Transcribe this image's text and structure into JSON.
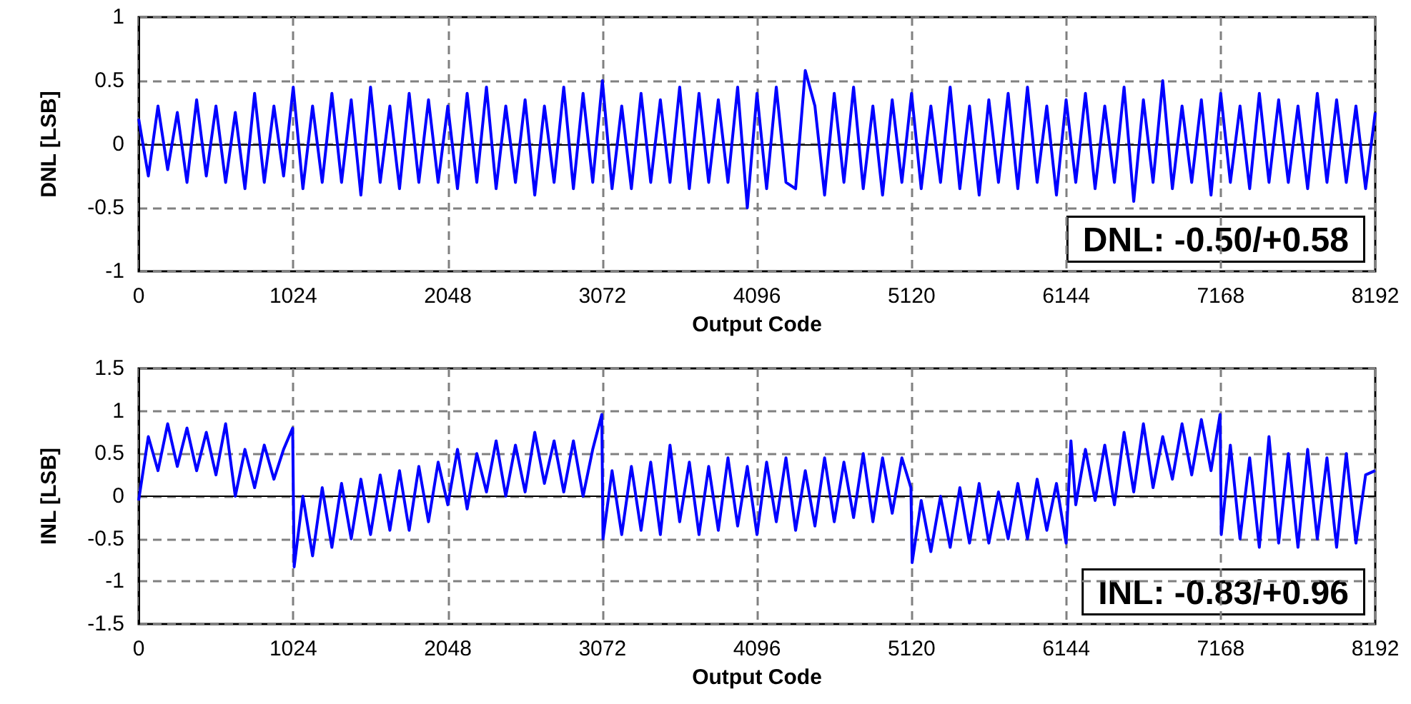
{
  "chart_data": [
    {
      "type": "line",
      "xlabel": "Output Code",
      "ylabel": "DNL [LSB]",
      "xlim": [
        0,
        8192
      ],
      "xticks": [
        0,
        1024,
        2048,
        3072,
        4096,
        5120,
        6144,
        7168,
        8192
      ],
      "ylim": [
        -1,
        1
      ],
      "yticks": [
        -1,
        -0.5,
        0,
        0.5,
        1
      ],
      "grid": true,
      "marker": "none",
      "line_style": "solid",
      "annotations": [
        "DNL: -0.50/+0.58"
      ],
      "series": [
        {
          "color": "#0000ff",
          "x": [
            0,
            64,
            128,
            192,
            256,
            320,
            384,
            448,
            512,
            576,
            640,
            704,
            768,
            832,
            896,
            960,
            1024,
            1088,
            1152,
            1216,
            1280,
            1344,
            1408,
            1472,
            1536,
            1600,
            1664,
            1728,
            1792,
            1856,
            1920,
            1984,
            2048,
            2112,
            2176,
            2240,
            2304,
            2368,
            2432,
            2496,
            2560,
            2624,
            2688,
            2752,
            2816,
            2880,
            2944,
            3008,
            3072,
            3136,
            3200,
            3264,
            3328,
            3392,
            3456,
            3520,
            3584,
            3648,
            3712,
            3776,
            3840,
            3904,
            3968,
            4032,
            4096,
            4160,
            4224,
            4288,
            4352,
            4416,
            4480,
            4544,
            4608,
            4672,
            4736,
            4800,
            4864,
            4928,
            4992,
            5056,
            5120,
            5184,
            5248,
            5312,
            5376,
            5440,
            5504,
            5568,
            5632,
            5696,
            5760,
            5824,
            5888,
            5952,
            6016,
            6080,
            6144,
            6208,
            6272,
            6336,
            6400,
            6464,
            6528,
            6592,
            6656,
            6720,
            6784,
            6848,
            6912,
            6976,
            7040,
            7104,
            7168,
            7232,
            7296,
            7360,
            7424,
            7488,
            7552,
            7616,
            7680,
            7744,
            7808,
            7872,
            7936,
            8000,
            8064,
            8128,
            8192
          ],
          "values": [
            0.2,
            -0.25,
            0.3,
            -0.2,
            0.25,
            -0.3,
            0.35,
            -0.25,
            0.3,
            -0.3,
            0.25,
            -0.35,
            0.4,
            -0.3,
            0.3,
            -0.25,
            0.45,
            -0.35,
            0.3,
            -0.3,
            0.4,
            -0.3,
            0.35,
            -0.4,
            0.45,
            -0.3,
            0.3,
            -0.35,
            0.4,
            -0.3,
            0.35,
            -0.3,
            0.3,
            -0.35,
            0.4,
            -0.3,
            0.45,
            -0.35,
            0.3,
            -0.3,
            0.35,
            -0.4,
            0.3,
            -0.3,
            0.45,
            -0.35,
            0.4,
            -0.3,
            0.5,
            -0.35,
            0.3,
            -0.35,
            0.4,
            -0.3,
            0.35,
            -0.3,
            0.45,
            -0.35,
            0.4,
            -0.3,
            0.35,
            -0.3,
            0.45,
            -0.5,
            0.4,
            -0.35,
            0.45,
            -0.3,
            -0.35,
            0.58,
            0.3,
            -0.4,
            0.4,
            -0.3,
            0.45,
            -0.35,
            0.3,
            -0.4,
            0.35,
            -0.3,
            0.4,
            -0.35,
            0.3,
            -0.3,
            0.45,
            -0.35,
            0.3,
            -0.4,
            0.35,
            -0.3,
            0.4,
            -0.35,
            0.45,
            -0.3,
            0.3,
            -0.4,
            0.35,
            -0.3,
            0.4,
            -0.35,
            0.3,
            -0.3,
            0.45,
            -0.45,
            0.35,
            -0.3,
            0.5,
            -0.35,
            0.3,
            -0.3,
            0.35,
            -0.4,
            0.4,
            -0.3,
            0.3,
            -0.35,
            0.4,
            -0.3,
            0.35,
            -0.3,
            0.3,
            -0.35,
            0.4,
            -0.3,
            0.35,
            -0.3,
            0.3,
            -0.35,
            0.25
          ]
        }
      ]
    },
    {
      "type": "line",
      "xlabel": "Output Code",
      "ylabel": "INL [LSB]",
      "xlim": [
        0,
        8192
      ],
      "xticks": [
        0,
        1024,
        2048,
        3072,
        4096,
        5120,
        6144,
        7168,
        8192
      ],
      "ylim": [
        -1.5,
        1.5
      ],
      "yticks": [
        -1.5,
        -1,
        -0.5,
        0,
        0.5,
        1,
        1.5
      ],
      "grid": true,
      "marker": "none",
      "line_style": "solid",
      "annotations": [
        "INL: -0.83/+0.96"
      ],
      "series": [
        {
          "color": "#0000ff",
          "x": [
            0,
            64,
            128,
            192,
            256,
            320,
            384,
            448,
            512,
            576,
            640,
            704,
            768,
            832,
            896,
            960,
            1020,
            1030,
            1088,
            1152,
            1216,
            1280,
            1344,
            1408,
            1472,
            1536,
            1600,
            1664,
            1728,
            1792,
            1856,
            1920,
            1984,
            2048,
            2112,
            2176,
            2240,
            2304,
            2368,
            2432,
            2496,
            2560,
            2624,
            2688,
            2752,
            2816,
            2880,
            2944,
            3008,
            3068,
            3076,
            3136,
            3200,
            3264,
            3328,
            3392,
            3456,
            3520,
            3584,
            3648,
            3712,
            3776,
            3840,
            3904,
            3968,
            4032,
            4096,
            4160,
            4224,
            4288,
            4352,
            4416,
            4480,
            4544,
            4608,
            4672,
            4736,
            4800,
            4864,
            4928,
            4992,
            5056,
            5116,
            5124,
            5184,
            5248,
            5312,
            5376,
            5440,
            5504,
            5568,
            5632,
            5696,
            5760,
            5824,
            5888,
            5952,
            6016,
            6080,
            6144,
            6176,
            6208,
            6272,
            6336,
            6400,
            6464,
            6528,
            6592,
            6656,
            6720,
            6784,
            6848,
            6912,
            6976,
            7040,
            7104,
            7164,
            7172,
            7232,
            7296,
            7360,
            7424,
            7488,
            7552,
            7616,
            7680,
            7744,
            7808,
            7872,
            7936,
            8000,
            8064,
            8128,
            8192
          ],
          "values": [
            -0.05,
            0.7,
            0.3,
            0.85,
            0.35,
            0.8,
            0.3,
            0.75,
            0.25,
            0.85,
            0.0,
            0.55,
            0.1,
            0.6,
            0.2,
            0.55,
            0.8,
            -0.83,
            0.0,
            -0.7,
            0.1,
            -0.6,
            0.15,
            -0.5,
            0.2,
            -0.45,
            0.25,
            -0.4,
            0.3,
            -0.4,
            0.35,
            -0.3,
            0.4,
            -0.1,
            0.55,
            -0.15,
            0.5,
            0.05,
            0.65,
            0.0,
            0.6,
            0.05,
            0.75,
            0.15,
            0.65,
            0.05,
            0.65,
            0.0,
            0.55,
            0.96,
            -0.5,
            0.3,
            -0.45,
            0.35,
            -0.4,
            0.4,
            -0.45,
            0.6,
            -0.3,
            0.4,
            -0.45,
            0.35,
            -0.4,
            0.45,
            -0.35,
            0.35,
            -0.45,
            0.4,
            -0.3,
            0.45,
            -0.4,
            0.3,
            -0.35,
            0.45,
            -0.3,
            0.4,
            -0.25,
            0.5,
            -0.3,
            0.45,
            -0.2,
            0.45,
            0.1,
            -0.78,
            -0.05,
            -0.65,
            0.0,
            -0.6,
            0.1,
            -0.55,
            0.15,
            -0.55,
            0.05,
            -0.5,
            0.15,
            -0.5,
            0.2,
            -0.4,
            0.15,
            -0.55,
            0.65,
            -0.1,
            0.55,
            -0.05,
            0.6,
            -0.1,
            0.75,
            0.05,
            0.85,
            0.1,
            0.7,
            0.2,
            0.85,
            0.25,
            0.9,
            0.3,
            0.96,
            -0.45,
            0.6,
            -0.5,
            0.45,
            -0.6,
            0.7,
            -0.55,
            0.5,
            -0.6,
            0.55,
            -0.5,
            0.45,
            -0.6,
            0.5,
            -0.55,
            0.25,
            0.3
          ]
        }
      ]
    }
  ]
}
